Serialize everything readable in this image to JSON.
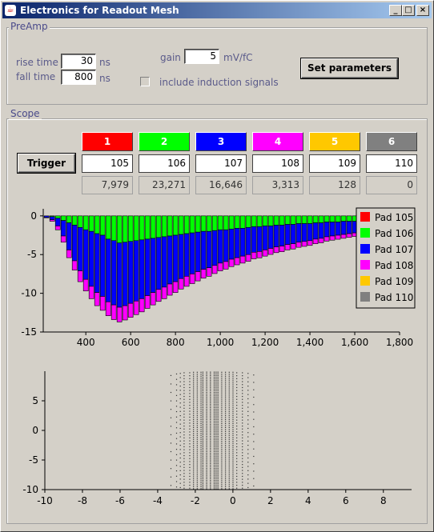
{
  "window": {
    "title": "Electronics for Readout Mesh",
    "minimize": "_",
    "maximize": "□",
    "close": "×"
  },
  "preamp": {
    "title": "PreAmp",
    "rise_time_label": "rise time",
    "rise_time_value": "30",
    "rise_time_unit": "ns",
    "fall_time_label": "fall time",
    "fall_time_value": "800",
    "fall_time_unit": "ns",
    "gain_label": "gain",
    "gain_value": "5",
    "gain_unit": "mV/fC",
    "set_button": "Set parameters",
    "induction_label": "include induction signals"
  },
  "scope": {
    "title": "Scope",
    "trigger_button": "Trigger",
    "channels": [
      {
        "label": "1",
        "color": "#ff0000",
        "pad": "105",
        "count": "7,979"
      },
      {
        "label": "2",
        "color": "#00ff00",
        "pad": "106",
        "count": "23,271"
      },
      {
        "label": "3",
        "color": "#0000ff",
        "pad": "107",
        "count": "16,646"
      },
      {
        "label": "4",
        "color": "#ff00ff",
        "pad": "108",
        "count": "3,313"
      },
      {
        "label": "5",
        "color": "#ffc800",
        "pad": "109",
        "count": "128"
      },
      {
        "label": "6",
        "color": "#808080",
        "pad": "110",
        "count": "0"
      }
    ]
  },
  "chart_data": [
    {
      "type": "bar",
      "stacked": true,
      "x_ticks": [
        "400",
        "600",
        "800",
        "1,000",
        "1,200",
        "1,400",
        "1,600",
        "1,800"
      ],
      "y_ticks": [
        "0",
        "-5",
        "-10",
        "-15"
      ],
      "xlim": [
        210,
        1800
      ],
      "ylim": [
        -15,
        0.5
      ],
      "legend_position": "top-right",
      "bin_width": 25,
      "x": [
        225,
        250,
        275,
        300,
        325,
        350,
        375,
        400,
        425,
        450,
        475,
        500,
        525,
        550,
        575,
        600,
        625,
        650,
        675,
        700,
        725,
        750,
        775,
        800,
        825,
        850,
        875,
        900,
        925,
        950,
        975,
        1000,
        1025,
        1050,
        1075,
        1100,
        1125,
        1150,
        1175,
        1200,
        1225,
        1250,
        1275,
        1300,
        1325,
        1350,
        1375,
        1400,
        1425,
        1450,
        1475,
        1500,
        1525,
        1550,
        1575,
        1600,
        1625,
        1650,
        1675,
        1700,
        1725,
        1750
      ],
      "series": [
        {
          "name": "Pad 105",
          "color": "#ff0000",
          "values": [
            0,
            0,
            0,
            0,
            0,
            0,
            0,
            0,
            0,
            0,
            0,
            0,
            0,
            0,
            0,
            0,
            0,
            0,
            0,
            0,
            0,
            0,
            0,
            0,
            0,
            0,
            0,
            0,
            0,
            0,
            0,
            0,
            0,
            0,
            0,
            0,
            0,
            0,
            0,
            0,
            0,
            0,
            0,
            0,
            0,
            0,
            0,
            0,
            0,
            0,
            0,
            0,
            0,
            0,
            0,
            0,
            0,
            0,
            0,
            0,
            0,
            0
          ]
        },
        {
          "name": "Pad 106",
          "color": "#00ff00",
          "values": [
            0,
            -0.1,
            -0.3,
            -0.6,
            -0.9,
            -1.2,
            -1.5,
            -1.8,
            -2.0,
            -2.3,
            -2.5,
            -3.0,
            -3.2,
            -3.5,
            -3.4,
            -3.3,
            -3.2,
            -3.1,
            -3.0,
            -2.9,
            -2.8,
            -2.7,
            -2.6,
            -2.5,
            -2.4,
            -2.3,
            -2.2,
            -2.1,
            -2.0,
            -2.0,
            -1.9,
            -1.8,
            -1.8,
            -1.7,
            -1.6,
            -1.6,
            -1.5,
            -1.4,
            -1.4,
            -1.3,
            -1.3,
            -1.2,
            -1.2,
            -1.1,
            -1.1,
            -1.0,
            -1.0,
            -1.0,
            -0.9,
            -0.9,
            -0.8,
            -0.8,
            -0.8,
            -0.7,
            -0.7,
            -0.7,
            -0.6,
            -0.6,
            -0.6,
            -0.5,
            -0.5,
            -0.5
          ]
        },
        {
          "name": "Pad 107",
          "color": "#0000ff",
          "values": [
            -0.2,
            -0.4,
            -1.0,
            -2.0,
            -3.5,
            -4.6,
            -5.6,
            -6.4,
            -7.1,
            -7.6,
            -7.9,
            -8.1,
            -8.3,
            -8.3,
            -8.2,
            -8.0,
            -7.8,
            -7.6,
            -7.3,
            -7.0,
            -6.7,
            -6.5,
            -6.2,
            -6.0,
            -5.7,
            -5.5,
            -5.3,
            -5.1,
            -4.9,
            -4.7,
            -4.5,
            -4.3,
            -4.1,
            -3.9,
            -3.8,
            -3.6,
            -3.5,
            -3.3,
            -3.2,
            -3.1,
            -2.9,
            -2.8,
            -2.7,
            -2.6,
            -2.5,
            -2.4,
            -2.3,
            -2.2,
            -2.1,
            -2.0,
            -1.9,
            -1.8,
            -1.7,
            -1.7,
            -1.6,
            -1.5,
            -1.4,
            -1.4,
            -1.3,
            -1.2,
            -1.2,
            -1.1
          ]
        },
        {
          "name": "Pad 108",
          "color": "#ff00ff",
          "values": [
            -0.05,
            -0.2,
            -0.5,
            -0.8,
            -1.0,
            -1.2,
            -1.4,
            -1.5,
            -1.6,
            -1.7,
            -1.8,
            -1.8,
            -1.9,
            -1.9,
            -1.85,
            -1.8,
            -1.75,
            -1.7,
            -1.65,
            -1.6,
            -1.55,
            -1.5,
            -1.45,
            -1.4,
            -1.35,
            -1.3,
            -1.25,
            -1.2,
            -1.15,
            -1.1,
            -1.05,
            -1.0,
            -0.98,
            -0.95,
            -0.92,
            -0.9,
            -0.87,
            -0.85,
            -0.82,
            -0.8,
            -0.78,
            -0.75,
            -0.73,
            -0.7,
            -0.68,
            -0.66,
            -0.64,
            -0.62,
            -0.6,
            -0.58,
            -0.56,
            -0.54,
            -0.52,
            -0.5,
            -0.48,
            -0.46,
            -0.44,
            -0.42,
            -0.4,
            -0.38,
            -0.36,
            -0.34
          ]
        },
        {
          "name": "Pad 109",
          "color": "#ffc800",
          "values": [
            0,
            0,
            0,
            0,
            0,
            0,
            0,
            0,
            0,
            0,
            0,
            0,
            0,
            0,
            0,
            0,
            0,
            0,
            0,
            0,
            0,
            0,
            0,
            0,
            0,
            0,
            0,
            0,
            0,
            0,
            0,
            0,
            0,
            0,
            0,
            0,
            0,
            0,
            0,
            0,
            0,
            0,
            0,
            0,
            0,
            0,
            0,
            0,
            0,
            0,
            0,
            0,
            0,
            0,
            0,
            0,
            0,
            0,
            0,
            0,
            0,
            0
          ]
        },
        {
          "name": "Pad 110",
          "color": "#808080",
          "values": [
            0,
            0,
            0,
            0,
            0,
            0,
            0,
            0,
            0,
            0,
            0,
            0,
            0,
            0,
            0,
            0,
            0,
            0,
            0,
            0,
            0,
            0,
            0,
            0,
            0,
            0,
            0,
            0,
            0,
            0,
            0,
            0,
            0,
            0,
            0,
            0,
            0,
            0,
            0,
            0,
            0,
            0,
            0,
            0,
            0,
            0,
            0,
            0,
            0,
            0,
            0,
            0,
            0,
            0,
            0,
            0,
            0,
            0,
            0,
            0,
            0,
            0
          ]
        }
      ]
    },
    {
      "type": "scatter",
      "x_ticks": [
        "-10",
        "-8",
        "-6",
        "-4",
        "-2",
        "0",
        "2",
        "4",
        "6",
        "8"
      ],
      "y_ticks": [
        "5",
        "0",
        "-5",
        "-10"
      ],
      "xlim": [
        -10,
        9.5
      ],
      "ylim": [
        -10,
        10
      ],
      "columns": [
        -3.3,
        -3.0,
        -2.8,
        -2.6,
        -2.3,
        -2.1,
        -1.9,
        -1.7,
        -1.6,
        -1.4,
        -1.2,
        -1.0,
        -0.9,
        -0.8,
        -0.6,
        -0.4,
        -0.2,
        0.0,
        0.2,
        0.5,
        0.8,
        1.1
      ],
      "point_count_per_column": [
        14,
        22,
        28,
        40,
        40,
        60,
        60,
        60,
        70,
        70,
        70,
        70,
        70,
        70,
        60,
        60,
        60,
        60,
        40,
        40,
        28,
        16
      ]
    }
  ]
}
